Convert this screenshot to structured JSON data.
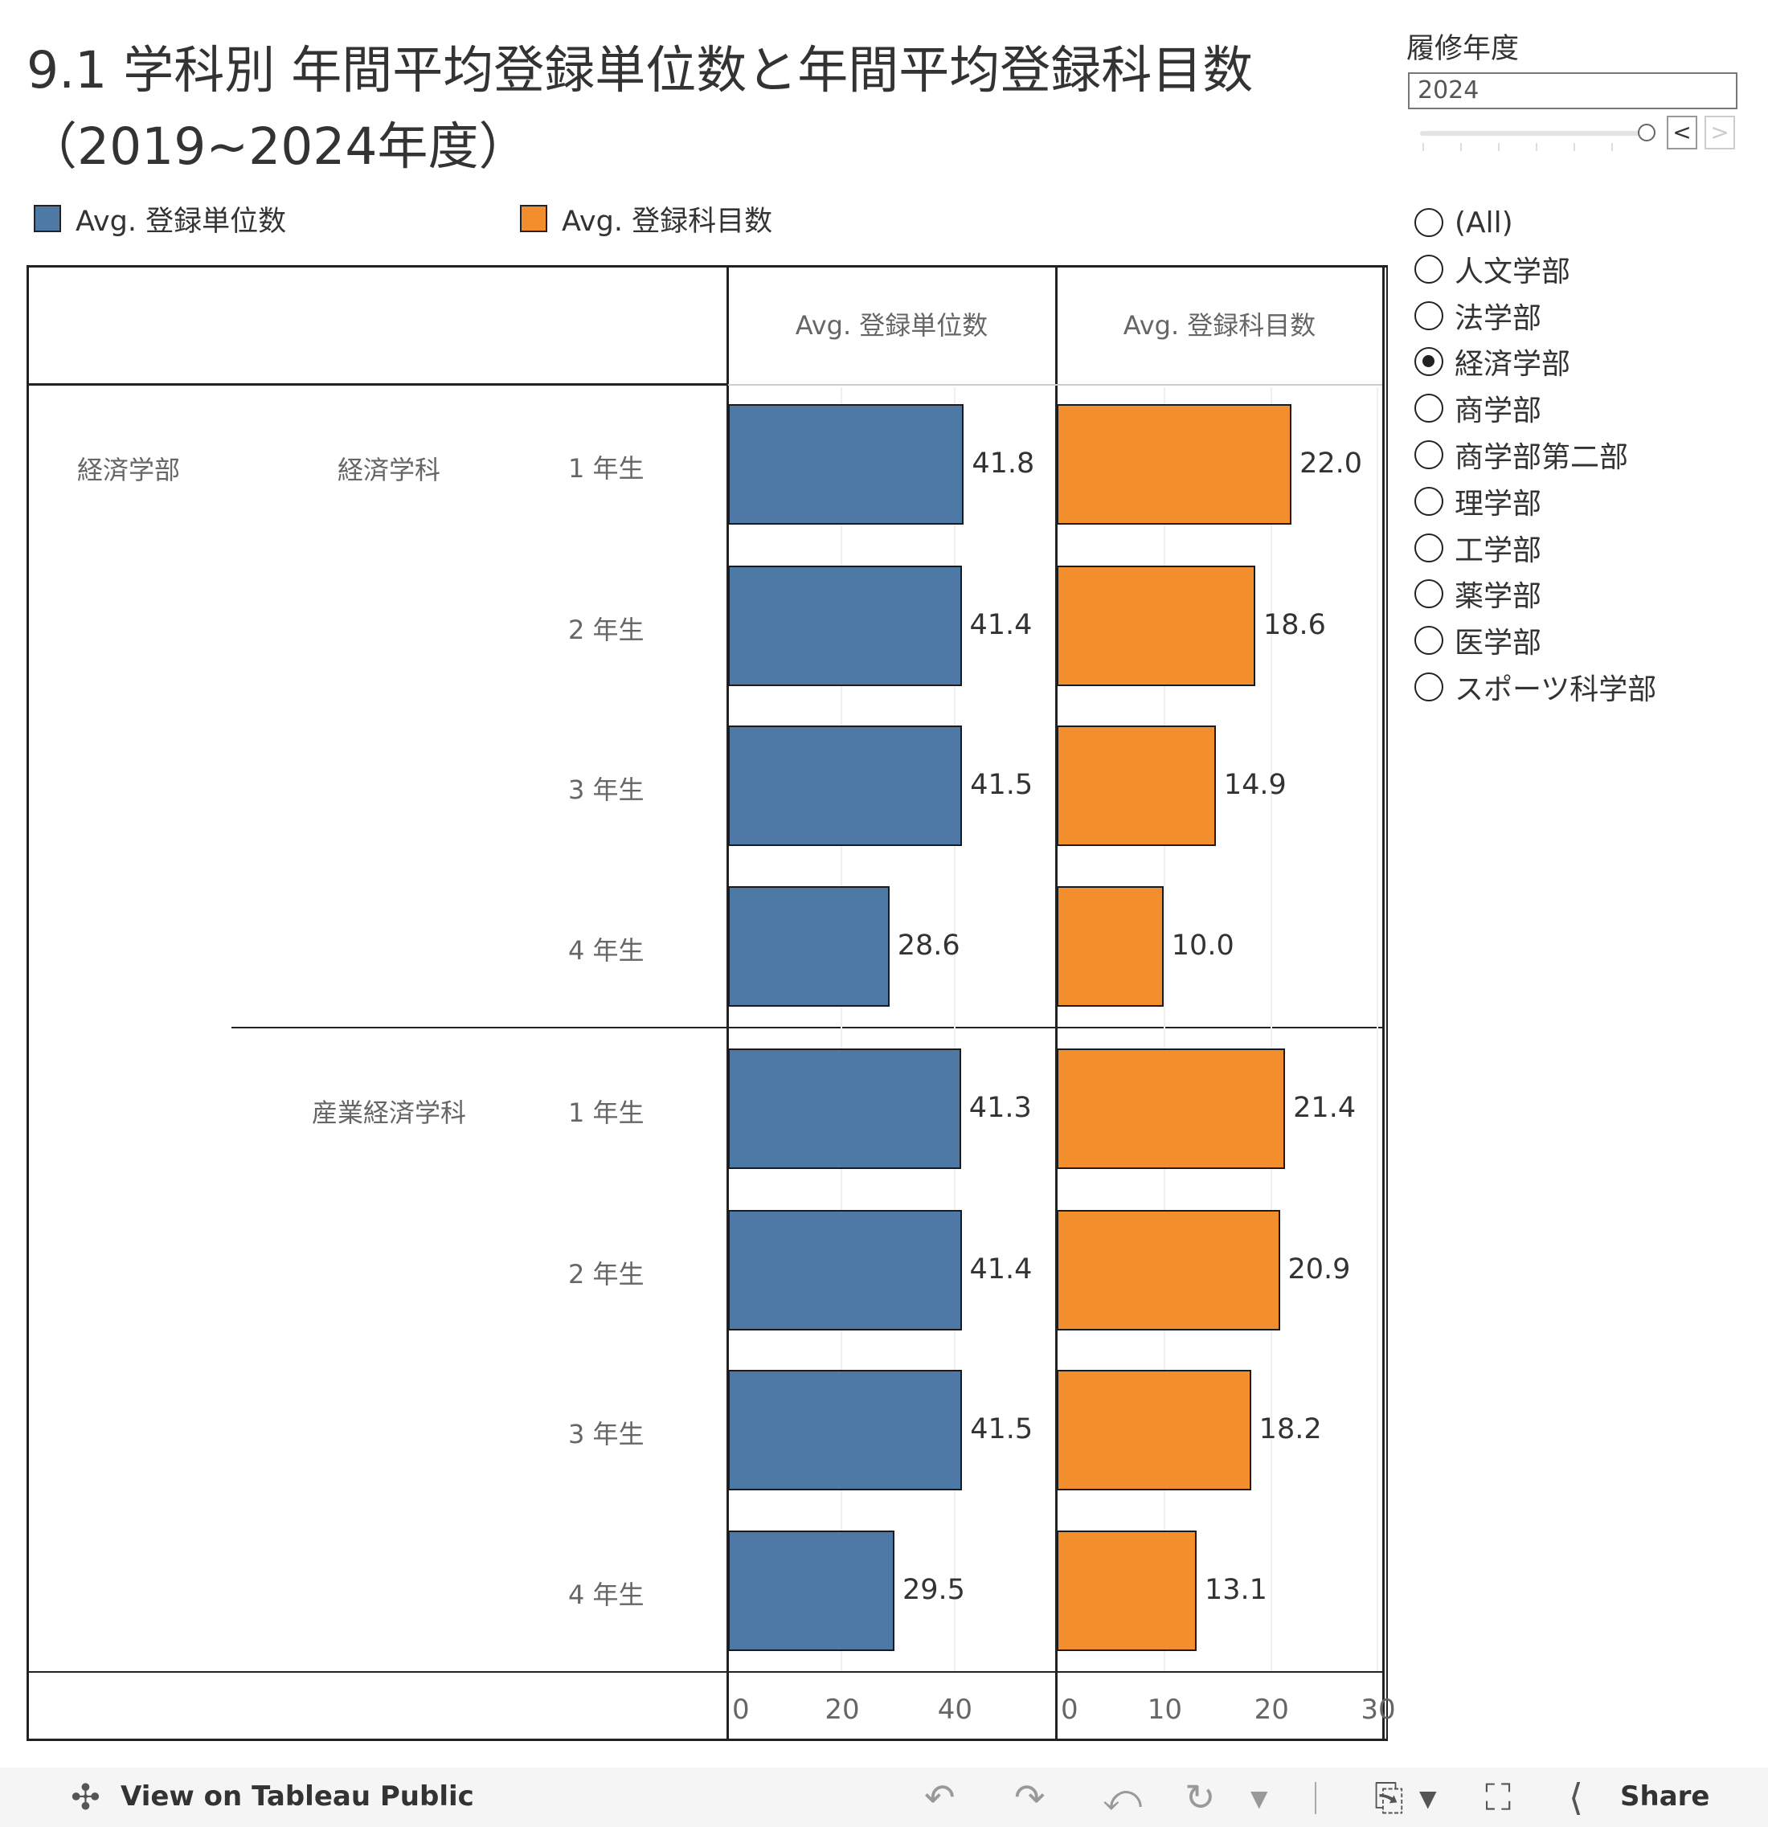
{
  "title": {
    "line1": "9.1 学科別 年間平均登録単位数と年間平均登録科目数",
    "line2": "（2019~2024年度）"
  },
  "filter": {
    "label": "履修年度",
    "value": "2024",
    "prev": "<",
    "next": ">"
  },
  "faculty_filter": {
    "options": [
      "(All)",
      "人文学部",
      "法学部",
      "経済学部",
      "商学部",
      "商学部第二部",
      "理学部",
      "工学部",
      "薬学部",
      "医学部",
      "スポーツ科学部"
    ],
    "selected": "経済学部"
  },
  "legend": [
    {
      "label": "Avg. 登録単位数",
      "color": "#4e79a7"
    },
    {
      "label": "Avg. 登録科目数",
      "color": "#f28e2b"
    }
  ],
  "table": {
    "faculty": "経済学部",
    "departments": [
      "経済学科",
      "産業経済学科"
    ],
    "grades": [
      "1 年生",
      "2 年生",
      "3 年生",
      "4 年生"
    ]
  },
  "chart_data": [
    {
      "type": "bar",
      "orientation": "horizontal",
      "header": "Avg. 登録単位数",
      "color": "#4e79a7",
      "categories": [
        "経済学科 1 年生",
        "経済学科 2 年生",
        "経済学科 3 年生",
        "経済学科 4 年生",
        "産業経済学科 1 年生",
        "産業経済学科 2 年生",
        "産業経済学科 3 年生",
        "産業経済学科 4 年生"
      ],
      "values": [
        41.8,
        41.4,
        41.5,
        28.6,
        41.3,
        41.4,
        41.5,
        29.5
      ],
      "labels": [
        "41.8",
        "41.4",
        "41.5",
        "28.6",
        "41.3",
        "41.4",
        "41.5",
        "29.5"
      ],
      "xlim": [
        0,
        58
      ],
      "ticks": [
        "0",
        "20",
        "40"
      ],
      "grid": true
    },
    {
      "type": "bar",
      "orientation": "horizontal",
      "header": "Avg. 登録科目数",
      "color": "#f28e2b",
      "categories": [
        "経済学科 1 年生",
        "経済学科 2 年生",
        "経済学科 3 年生",
        "経済学科 4 年生",
        "産業経済学科 1 年生",
        "産業経済学科 2 年生",
        "産業経済学科 3 年生",
        "産業経済学科 4 年生"
      ],
      "values": [
        22.0,
        18.6,
        14.9,
        10.0,
        21.4,
        20.9,
        18.2,
        13.1
      ],
      "labels": [
        "22.0",
        "18.6",
        "14.9",
        "10.0",
        "21.4",
        "20.9",
        "18.2",
        "13.1"
      ],
      "xlim": [
        0,
        30.5
      ],
      "ticks": [
        "0",
        "10",
        "20",
        "30"
      ],
      "grid": true
    }
  ],
  "footer": {
    "label": "View on Tableau Public",
    "share": "Share"
  }
}
